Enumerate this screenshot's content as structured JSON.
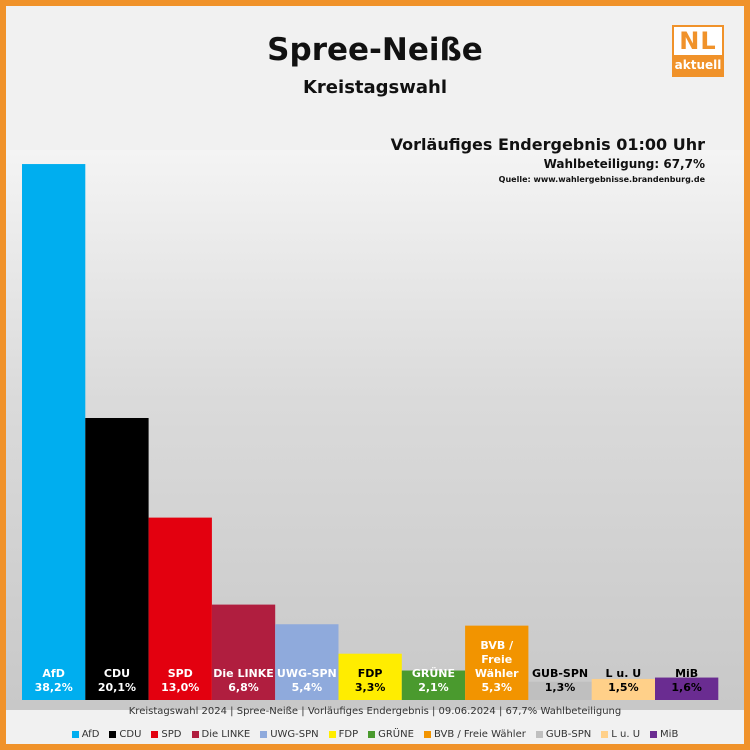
{
  "header": {
    "title": "Spree-Neiße",
    "subtitle": "Kreistagswahl",
    "logo_main": "NL",
    "logo_sub": "aktuell",
    "result_status": "Vorläufiges Endergebnis 01:00 Uhr",
    "turnout": "Wahlbeteiligung:  67,7%",
    "source": "Quelle: www.wahlergebnisse.brandenburg.de"
  },
  "caption": "Kreistagswahl 2024 | Spree-Neiße | Vorläufiges Endergebnis | 09.06.2024 | 67,7% Wahlbeteiligung",
  "chart_data": {
    "type": "bar",
    "title": "Spree-Neiße Kreistagswahl",
    "ylim": [
      0,
      40
    ],
    "categories": [
      "AfD",
      "CDU",
      "SPD",
      "Die LINKE",
      "UWG-SPN",
      "FDP",
      "GRÜNE",
      "BVB / Freie Wähler",
      "GUB-SPN",
      "L u. U",
      "MiB"
    ],
    "values": [
      38.2,
      20.1,
      13.0,
      6.8,
      5.4,
      3.3,
      2.1,
      5.3,
      1.3,
      1.5,
      1.6
    ],
    "value_labels": [
      "38,2%",
      "20,1%",
      "13,0%",
      "6,8%",
      "5,4%",
      "3,3%",
      "2,1%",
      "5,3%",
      "1,3%",
      "1,5%",
      "1,6%"
    ],
    "bar_labels": [
      [
        "AfD"
      ],
      [
        "CDU"
      ],
      [
        "SPD"
      ],
      [
        "Die LINKE"
      ],
      [
        "UWG-SPN"
      ],
      [
        "FDP"
      ],
      [
        "GRÜNE"
      ],
      [
        "BVB /",
        "Freie",
        "Wähler"
      ],
      [
        "GUB-SPN"
      ],
      [
        "L u. U"
      ],
      [
        "MiB"
      ]
    ],
    "colors": [
      "#00AEEF",
      "#000000",
      "#E3000F",
      "#B01E3F",
      "#8FAADC",
      "#FFED00",
      "#4A9A2E",
      "#F29400",
      "#BFBFBF",
      "#FFD089",
      "#6A2C91"
    ],
    "label_colors": [
      "#FFFFFF",
      "#FFFFFF",
      "#FFFFFF",
      "#FFFFFF",
      "#FFFFFF",
      "#000000",
      "#FFFFFF",
      "#FFFFFF",
      "#000000",
      "#000000",
      "#000000"
    ],
    "legend": [
      "AfD",
      "CDU",
      "SPD",
      "Die LINKE",
      "UWG-SPN",
      "FDP",
      "GRÜNE",
      "BVB / Freie Wähler",
      "GUB-SPN",
      "L u. U",
      "MiB"
    ]
  }
}
